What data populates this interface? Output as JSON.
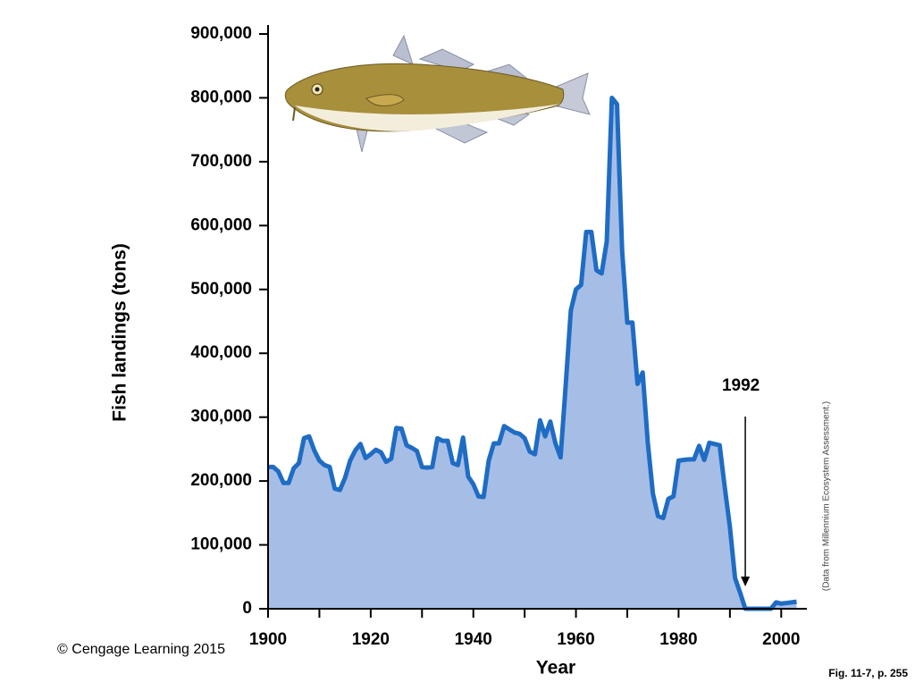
{
  "chart_data": {
    "type": "area",
    "y_label": "Fish landings (tons)",
    "x_label": "Year",
    "x": [
      1900,
      1901,
      1902,
      1903,
      1904,
      1905,
      1906,
      1907,
      1908,
      1909,
      1910,
      1911,
      1912,
      1913,
      1914,
      1915,
      1916,
      1917,
      1918,
      1919,
      1920,
      1921,
      1922,
      1923,
      1924,
      1925,
      1926,
      1927,
      1928,
      1929,
      1930,
      1931,
      1932,
      1933,
      1934,
      1935,
      1936,
      1937,
      1938,
      1939,
      1940,
      1941,
      1942,
      1943,
      1944,
      1945,
      1946,
      1947,
      1948,
      1949,
      1950,
      1951,
      1952,
      1953,
      1954,
      1955,
      1956,
      1957,
      1958,
      1959,
      1960,
      1961,
      1962,
      1963,
      1964,
      1965,
      1966,
      1967,
      1968,
      1969,
      1970,
      1971,
      1972,
      1973,
      1974,
      1975,
      1976,
      1977,
      1978,
      1979,
      1980,
      1981,
      1982,
      1983,
      1984,
      1985,
      1986,
      1987,
      1988,
      1989,
      1990,
      1991,
      1992,
      1993,
      1994,
      1995,
      1996,
      1997,
      1998,
      1999,
      2000,
      2001,
      2002,
      2003
    ],
    "values": [
      222000,
      222000,
      215000,
      197000,
      197000,
      220000,
      228000,
      267000,
      270000,
      248000,
      232000,
      225000,
      222000,
      188000,
      186000,
      205000,
      232000,
      248000,
      258000,
      236000,
      242000,
      249000,
      245000,
      230000,
      235000,
      283000,
      282000,
      256000,
      252000,
      247000,
      222000,
      221000,
      222000,
      267000,
      263000,
      263000,
      228000,
      225000,
      268000,
      207000,
      195000,
      176000,
      175000,
      232000,
      259000,
      259000,
      286000,
      281000,
      276000,
      274000,
      267000,
      246000,
      242000,
      295000,
      270000,
      293000,
      259000,
      237000,
      350000,
      467000,
      500000,
      507000,
      590000,
      590000,
      530000,
      525000,
      575000,
      800000,
      790000,
      560000,
      448000,
      448000,
      352000,
      370000,
      260000,
      180000,
      145000,
      142000,
      172000,
      176000,
      232000,
      233000,
      234000,
      234000,
      255000,
      233000,
      260000,
      258000,
      256000,
      190000,
      128000,
      48000,
      25000,
      0,
      0,
      0,
      0,
      0,
      0,
      10000,
      8000,
      9000,
      10000,
      11000
    ],
    "color": "#1f6cc4",
    "fill_color": "#a6bee6",
    "xlim": [
      1900,
      2005
    ],
    "ylim": [
      0,
      900000
    ],
    "xticks": [
      1900,
      1920,
      1940,
      1960,
      1980,
      2000
    ],
    "xminorticks": [
      1910,
      1930,
      1950,
      1970,
      1990
    ],
    "yticks": [
      0,
      {
        "value": 100000,
        "label": "100,000"
      },
      {
        "value": 200000,
        "label": "200,000"
      },
      {
        "value": 300000,
        "label": "300,000"
      },
      {
        "value": 400000,
        "label": "400,000"
      },
      {
        "value": 500000,
        "label": "500,000"
      },
      {
        "value": 600000,
        "label": "600,000"
      },
      {
        "value": 700000,
        "label": "700,000"
      },
      {
        "value": 800000,
        "label": "800,000"
      },
      {
        "value": 900000,
        "label": "900,000"
      }
    ],
    "annotations": [
      {
        "text": "1992",
        "x": 1993
      }
    ],
    "source": "(Data from Millennium Ecosystem Assessment.)",
    "copyright": "© Cengage Learning 2015",
    "figure_ref": "Fig. 11-7, p. 255"
  }
}
